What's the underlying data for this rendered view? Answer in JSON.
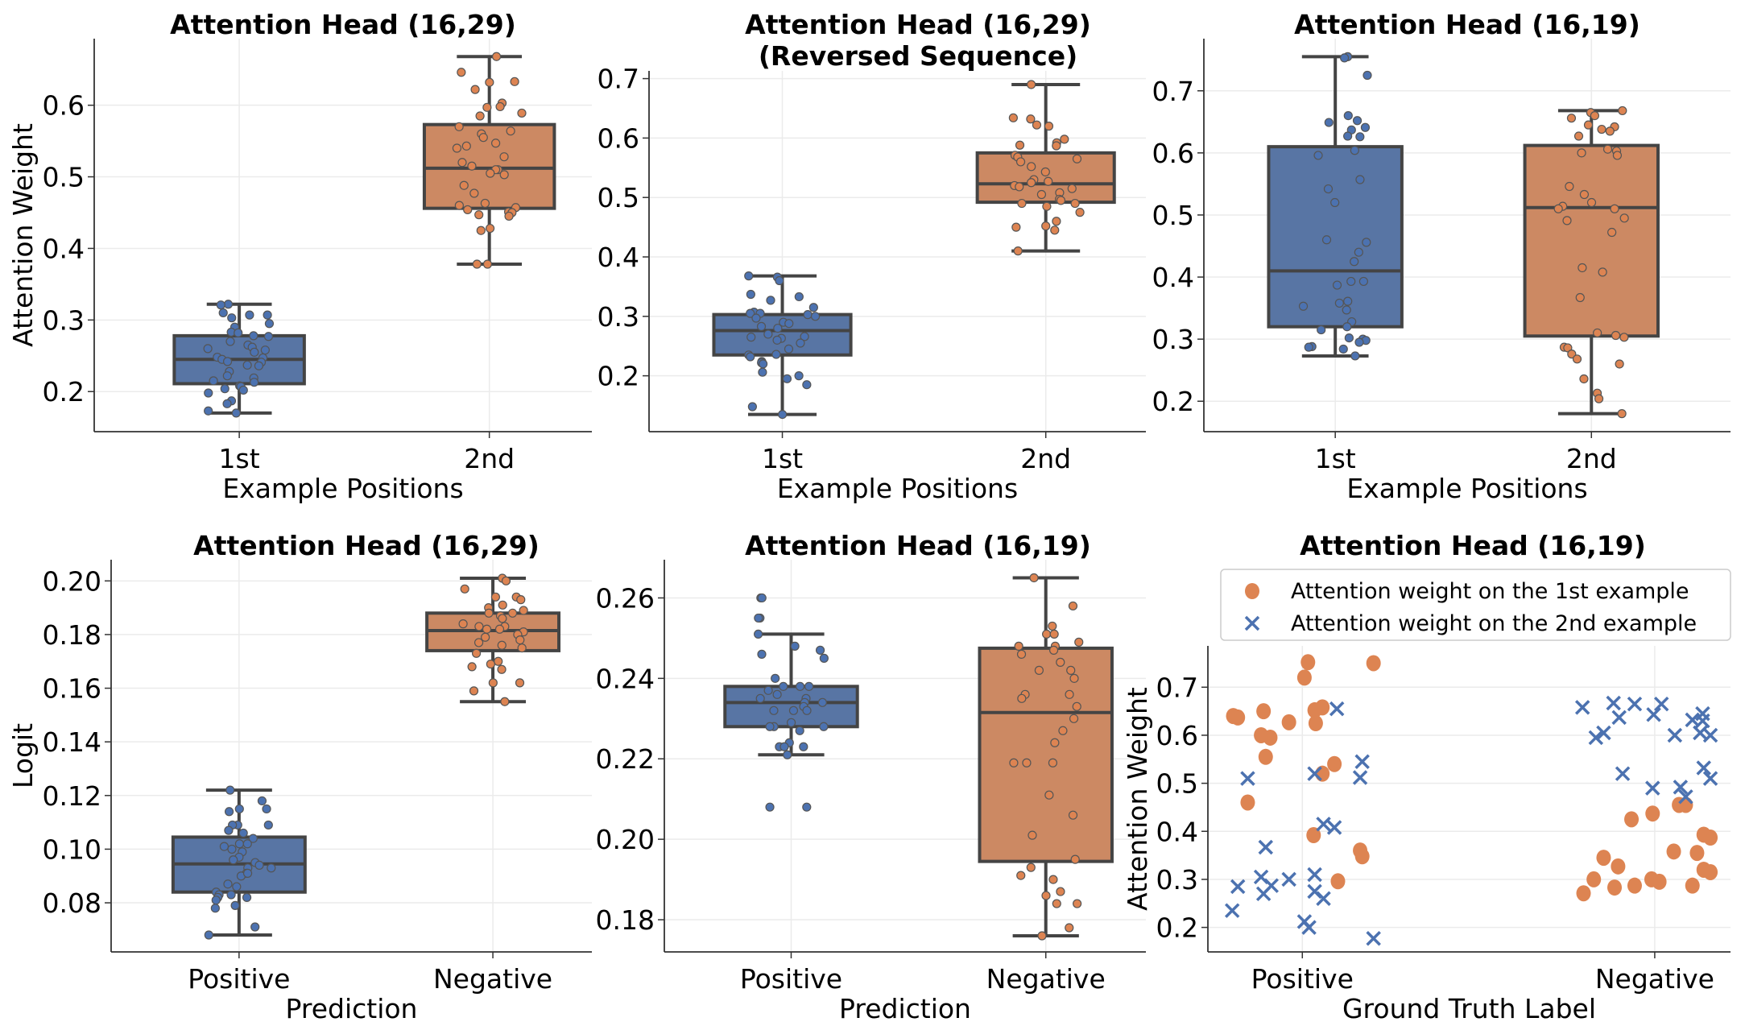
{
  "colors": {
    "blue_point": "#4c72b0",
    "orange_point": "#dd8452",
    "blue_box": "#5875a4",
    "orange_box": "#cc8963",
    "line": "#444444",
    "grid": "#ebebeb"
  },
  "chart_data": [
    {
      "type": "box",
      "title": [
        "Attention Head (16,29)"
      ],
      "xlabel": "Example Positions",
      "ylabel": "Attention Weight",
      "categories": [
        "1st",
        "2nd"
      ],
      "ylim": [
        0.144,
        0.693
      ],
      "xlim": [
        -0.58,
        1.41
      ],
      "yticks": [
        "0.2",
        "0.3",
        "0.4",
        "0.5",
        "0.6"
      ],
      "grid": true,
      "boxes": [
        {
          "whisker_low": 0.17,
          "q1": 0.211,
          "median": 0.245,
          "q3": 0.278,
          "whisker_high": 0.322,
          "color": "blue",
          "points": [
            0.322,
            0.321,
            0.307,
            0.303,
            0.307,
            0.31,
            0.295,
            0.29,
            0.283,
            0.282,
            0.277,
            0.278,
            0.27,
            0.265,
            0.262,
            0.26,
            0.258,
            0.255,
            0.247,
            0.248,
            0.245,
            0.242,
            0.241,
            0.237,
            0.236,
            0.228,
            0.222,
            0.219,
            0.215,
            0.213,
            0.208,
            0.207,
            0.204,
            0.202,
            0.198,
            0.187,
            0.183,
            0.173,
            0.17
          ]
        },
        {
          "whisker_low": 0.378,
          "q1": 0.456,
          "median": 0.512,
          "q3": 0.573,
          "whisker_high": 0.668,
          "color": "orange",
          "points": [
            0.668,
            0.646,
            0.632,
            0.633,
            0.622,
            0.603,
            0.598,
            0.597,
            0.589,
            0.585,
            0.57,
            0.564,
            0.56,
            0.555,
            0.547,
            0.543,
            0.54,
            0.528,
            0.52,
            0.515,
            0.51,
            0.51,
            0.505,
            0.503,
            0.488,
            0.477,
            0.463,
            0.46,
            0.457,
            0.454,
            0.451,
            0.45,
            0.447,
            0.445,
            0.428,
            0.425,
            0.378,
            0.378
          ]
        }
      ]
    },
    {
      "type": "box",
      "title": [
        "Attention Head (16,29)",
        "(Reversed Sequence)"
      ],
      "xlabel": "Example Positions",
      "ylabel": "",
      "categories": [
        "1st",
        "2nd"
      ],
      "ylim": [
        0.106,
        0.713
      ],
      "xlim": [
        -0.506,
        1.38
      ],
      "yticks": [
        "0.2",
        "0.3",
        "0.4",
        "0.5",
        "0.6",
        "0.7"
      ],
      "grid": true,
      "boxes": [
        {
          "whisker_low": 0.135,
          "q1": 0.235,
          "median": 0.276,
          "q3": 0.303,
          "whisker_high": 0.368,
          "color": "blue",
          "points": [
            0.368,
            0.366,
            0.36,
            0.337,
            0.333,
            0.327,
            0.315,
            0.307,
            0.305,
            0.305,
            0.303,
            0.3,
            0.297,
            0.29,
            0.288,
            0.283,
            0.28,
            0.27,
            0.266,
            0.265,
            0.263,
            0.26,
            0.255,
            0.245,
            0.236,
            0.235,
            0.232,
            0.224,
            0.222,
            0.22,
            0.206,
            0.2,
            0.195,
            0.185,
            0.148,
            0.135
          ]
        },
        {
          "whisker_low": 0.41,
          "q1": 0.492,
          "median": 0.523,
          "q3": 0.575,
          "whisker_high": 0.69,
          "color": "orange",
          "points": [
            0.69,
            0.632,
            0.634,
            0.62,
            0.622,
            0.598,
            0.592,
            0.588,
            0.587,
            0.571,
            0.565,
            0.568,
            0.56,
            0.552,
            0.543,
            0.53,
            0.527,
            0.525,
            0.52,
            0.518,
            0.515,
            0.508,
            0.505,
            0.497,
            0.495,
            0.49,
            0.49,
            0.485,
            0.475,
            0.46,
            0.452,
            0.45,
            0.445,
            0.41
          ]
        }
      ]
    },
    {
      "type": "box",
      "title": [
        "Attention Head (16,19)"
      ],
      "xlabel": "Example Positions",
      "ylabel": "",
      "categories": [
        "1st",
        "2nd"
      ],
      "ylim": [
        0.151,
        0.784
      ],
      "xlim": [
        -0.513,
        1.543
      ],
      "yticks": [
        "0.2",
        "0.3",
        "0.4",
        "0.5",
        "0.6",
        "0.7"
      ],
      "grid": true,
      "boxes": [
        {
          "whisker_low": 0.273,
          "q1": 0.32,
          "median": 0.41,
          "q3": 0.61,
          "whisker_high": 0.755,
          "color": "blue",
          "points": [
            0.755,
            0.753,
            0.725,
            0.66,
            0.652,
            0.649,
            0.641,
            0.637,
            0.627,
            0.626,
            0.604,
            0.596,
            0.557,
            0.542,
            0.52,
            0.46,
            0.456,
            0.44,
            0.425,
            0.393,
            0.393,
            0.387,
            0.361,
            0.358,
            0.353,
            0.347,
            0.328,
            0.32,
            0.315,
            0.302,
            0.3,
            0.298,
            0.295,
            0.288,
            0.287,
            0.284,
            0.273
          ]
        },
        {
          "whisker_low": 0.18,
          "q1": 0.305,
          "median": 0.512,
          "q3": 0.612,
          "whisker_high": 0.668,
          "color": "orange",
          "points": [
            0.668,
            0.665,
            0.66,
            0.656,
            0.645,
            0.642,
            0.638,
            0.635,
            0.627,
            0.606,
            0.603,
            0.6,
            0.596,
            0.546,
            0.533,
            0.52,
            0.514,
            0.51,
            0.51,
            0.495,
            0.491,
            0.472,
            0.415,
            0.408,
            0.367,
            0.31,
            0.306,
            0.303,
            0.287,
            0.286,
            0.276,
            0.268,
            0.26,
            0.236,
            0.213,
            0.204,
            0.18
          ]
        }
      ]
    },
    {
      "type": "box",
      "title": [
        "Attention Head (16,29)"
      ],
      "xlabel": "Prediction",
      "ylabel": "Logit",
      "categories": [
        "Positive",
        "Negative"
      ],
      "ylim": [
        0.0617,
        0.2079
      ],
      "xlim": [
        -0.504,
        1.39
      ],
      "yticks": [
        "0.08",
        "0.10",
        "0.12",
        "0.14",
        "0.16",
        "0.18",
        "0.20"
      ],
      "grid": true,
      "boxes": [
        {
          "whisker_low": 0.068,
          "q1": 0.084,
          "median": 0.0945,
          "q3": 0.1045,
          "whisker_high": 0.122,
          "color": "blue",
          "points": [
            0.122,
            0.118,
            0.115,
            0.114,
            0.115,
            0.109,
            0.109,
            0.109,
            0.107,
            0.106,
            0.104,
            0.102,
            0.102,
            0.101,
            0.1,
            0.099,
            0.097,
            0.096,
            0.095,
            0.094,
            0.093,
            0.093,
            0.091,
            0.09,
            0.091,
            0.087,
            0.086,
            0.084,
            0.083,
            0.083,
            0.082,
            0.082,
            0.081,
            0.079,
            0.078,
            0.071,
            0.068
          ]
        },
        {
          "whisker_low": 0.155,
          "q1": 0.174,
          "median": 0.1815,
          "q3": 0.188,
          "whisker_high": 0.201,
          "color": "orange",
          "points": [
            0.201,
            0.2,
            0.197,
            0.194,
            0.194,
            0.193,
            0.191,
            0.19,
            0.189,
            0.188,
            0.188,
            0.187,
            0.186,
            0.184,
            0.183,
            0.183,
            0.182,
            0.182,
            0.181,
            0.18,
            0.179,
            0.178,
            0.177,
            0.176,
            0.175,
            0.173,
            0.17,
            0.169,
            0.168,
            0.167,
            0.162,
            0.162,
            0.159,
            0.155
          ]
        }
      ]
    },
    {
      "type": "box",
      "title": [
        "Attention Head (16,19)"
      ],
      "xlabel": "Prediction",
      "ylabel": "",
      "categories": [
        "Positive",
        "Negative"
      ],
      "ylim": [
        0.172,
        0.2695
      ],
      "xlim": [
        -0.498,
        1.393
      ],
      "yticks": [
        "0.18",
        "0.20",
        "0.22",
        "0.24",
        "0.26"
      ],
      "grid": true,
      "boxes": [
        {
          "whisker_low": 0.221,
          "q1": 0.228,
          "median": 0.234,
          "q3": 0.238,
          "whisker_high": 0.251,
          "color": "blue",
          "points": [
            0.26,
            0.26,
            0.255,
            0.255,
            0.251,
            0.248,
            0.247,
            0.246,
            0.245,
            0.24,
            0.238,
            0.238,
            0.238,
            0.237,
            0.236,
            0.235,
            0.235,
            0.234,
            0.234,
            0.233,
            0.232,
            0.232,
            0.232,
            0.229,
            0.228,
            0.228,
            0.228,
            0.227,
            0.224,
            0.223,
            0.223,
            0.223,
            0.221,
            0.208,
            0.208
          ]
        },
        {
          "whisker_low": 0.176,
          "q1": 0.1945,
          "median": 0.2315,
          "q3": 0.2475,
          "whisker_high": 0.265,
          "color": "orange",
          "points": [
            0.265,
            0.258,
            0.253,
            0.251,
            0.251,
            0.249,
            0.248,
            0.248,
            0.247,
            0.246,
            0.244,
            0.242,
            0.242,
            0.24,
            0.236,
            0.236,
            0.235,
            0.233,
            0.23,
            0.227,
            0.224,
            0.219,
            0.219,
            0.219,
            0.211,
            0.206,
            0.201,
            0.195,
            0.193,
            0.191,
            0.19,
            0.187,
            0.186,
            0.184,
            0.184,
            0.178,
            0.176
          ]
        }
      ]
    },
    {
      "type": "scatter",
      "title": [
        "Attention Head (16,19)"
      ],
      "xlabel": "Ground Truth Label",
      "ylabel": "Attention Weight",
      "categories": [
        "Positive",
        "Negative"
      ],
      "ylim": [
        0.149,
        0.786
      ],
      "xlim": [
        -0.268,
        1.215
      ],
      "yticks": [
        "0.2",
        "0.3",
        "0.4",
        "0.5",
        "0.6",
        "0.7"
      ],
      "grid": true,
      "legend_position": "top",
      "series": [
        {
          "name": "Attention weight on the 1st example",
          "marker": "circle",
          "color": "orange",
          "points": [
            [
              -0.196,
              0.64
            ],
            [
              -0.183,
              0.637
            ],
            [
              -0.11,
              0.65
            ],
            [
              -0.117,
              0.6
            ],
            [
              -0.091,
              0.595
            ],
            [
              -0.104,
              0.555
            ],
            [
              -0.155,
              0.46
            ],
            [
              -0.038,
              0.627
            ],
            [
              0.006,
              0.72
            ],
            [
              0.016,
              0.752
            ],
            [
              0.035,
              0.652
            ],
            [
              0.038,
              0.625
            ],
            [
              0.057,
              0.658
            ],
            [
              0.057,
              0.52
            ],
            [
              0.091,
              0.54
            ],
            [
              0.032,
              0.392
            ],
            [
              0.101,
              0.296
            ],
            [
              0.164,
              0.36
            ],
            [
              0.17,
              0.348
            ],
            [
              0.202,
              0.75
            ],
            [
              0.798,
              0.271
            ],
            [
              0.827,
              0.3
            ],
            [
              0.855,
              0.345
            ],
            [
              0.886,
              0.283
            ],
            [
              0.896,
              0.327
            ],
            [
              0.943,
              0.287
            ],
            [
              0.991,
              0.3
            ],
            [
              1.013,
              0.295
            ],
            [
              0.994,
              0.437
            ],
            [
              0.934,
              0.425
            ],
            [
              1.069,
              0.455
            ],
            [
              1.088,
              0.455
            ],
            [
              1.054,
              0.358
            ],
            [
              1.107,
              0.287
            ],
            [
              1.12,
              0.355
            ],
            [
              1.139,
              0.393
            ],
            [
              1.158,
              0.387
            ],
            [
              1.139,
              0.32
            ],
            [
              1.158,
              0.315
            ]
          ]
        },
        {
          "name": "Attention weight on the 2nd example",
          "marker": "x",
          "color": "blue",
          "points": [
            [
              -0.155,
              0.51
            ],
            [
              -0.183,
              0.285
            ],
            [
              -0.199,
              0.235
            ],
            [
              -0.117,
              0.305
            ],
            [
              -0.11,
              0.27
            ],
            [
              -0.088,
              0.287
            ],
            [
              -0.104,
              0.367
            ],
            [
              -0.038,
              0.3
            ],
            [
              0.006,
              0.212
            ],
            [
              0.019,
              0.2
            ],
            [
              0.035,
              0.52
            ],
            [
              0.035,
              0.31
            ],
            [
              0.035,
              0.275
            ],
            [
              0.06,
              0.26
            ],
            [
              0.06,
              0.415
            ],
            [
              0.091,
              0.408
            ],
            [
              0.098,
              0.655
            ],
            [
              0.164,
              0.512
            ],
            [
              0.17,
              0.545
            ],
            [
              0.202,
              0.177
            ],
            [
              0.795,
              0.658
            ],
            [
              0.833,
              0.595
            ],
            [
              0.855,
              0.605
            ],
            [
              0.883,
              0.667
            ],
            [
              0.899,
              0.637
            ],
            [
              0.943,
              0.665
            ],
            [
              0.997,
              0.643
            ],
            [
              1.019,
              0.665
            ],
            [
              1.057,
              0.6
            ],
            [
              0.909,
              0.52
            ],
            [
              0.994,
              0.49
            ],
            [
              1.073,
              0.492
            ],
            [
              1.088,
              0.472
            ],
            [
              1.107,
              0.632
            ],
            [
              1.136,
              0.645
            ],
            [
              1.136,
              0.63
            ],
            [
              1.129,
              0.605
            ],
            [
              1.158,
              0.6
            ],
            [
              1.139,
              0.532
            ],
            [
              1.158,
              0.51
            ]
          ]
        }
      ]
    }
  ]
}
